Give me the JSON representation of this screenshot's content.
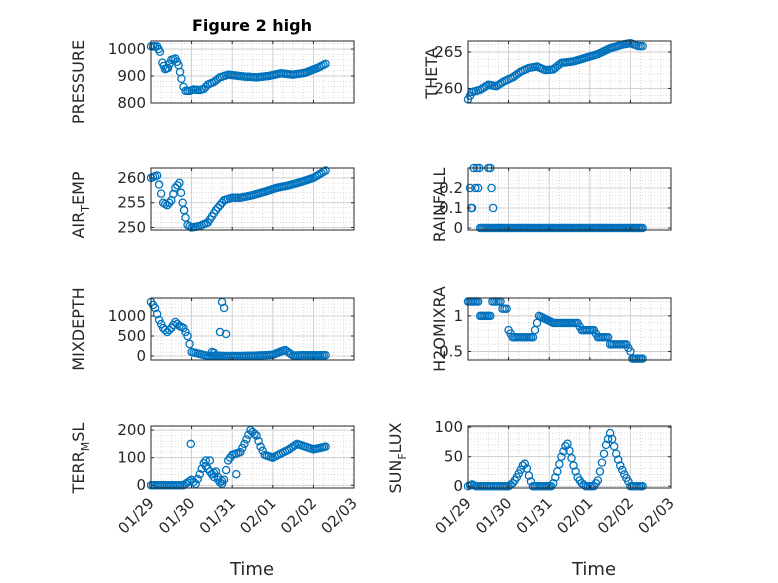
{
  "chart_data": {
    "type": "scatter",
    "title": "Figure 2 high",
    "marker": "circle-open",
    "marker_color": "#0072bd",
    "grid": "major and minor dotted",
    "x_axis": {
      "label": "Time",
      "range": [
        0,
        5
      ],
      "ticks": [
        0,
        1,
        2,
        3,
        4,
        5
      ],
      "tick_labels": [
        "01/29",
        "01/30",
        "01/31",
        "02/01",
        "02/02",
        "02/03"
      ],
      "tick_labels_shown_on": "bottom row only"
    },
    "panels": [
      {
        "id": "pressure",
        "ylabel": "PRESSURE",
        "ylim": [
          800,
          1030
        ],
        "yticks": [
          800,
          900,
          1000
        ],
        "ytick_labels": [
          "800",
          "900",
          "1000"
        ],
        "anchors": [
          [
            0.0,
            1010
          ],
          [
            0.15,
            1010
          ],
          [
            0.22,
            990
          ],
          [
            0.28,
            950
          ],
          [
            0.35,
            925
          ],
          [
            0.42,
            930
          ],
          [
            0.5,
            960
          ],
          [
            0.6,
            965
          ],
          [
            0.68,
            940
          ],
          [
            0.75,
            890
          ],
          [
            0.8,
            860
          ],
          [
            0.85,
            845
          ],
          [
            0.95,
            845
          ],
          [
            1.05,
            850
          ],
          [
            1.2,
            848
          ],
          [
            1.3,
            852
          ],
          [
            1.4,
            868
          ],
          [
            1.55,
            878
          ],
          [
            1.7,
            895
          ],
          [
            1.9,
            905
          ],
          [
            2.3,
            898
          ],
          [
            2.6,
            895
          ],
          [
            2.9,
            900
          ],
          [
            3.2,
            910
          ],
          [
            3.5,
            905
          ],
          [
            3.8,
            912
          ],
          [
            4.1,
            930
          ],
          [
            4.3,
            945
          ]
        ]
      },
      {
        "id": "theta",
        "ylabel": "THETA",
        "ylim": [
          258,
          266.5
        ],
        "yticks": [
          260,
          265
        ],
        "ytick_labels": [
          "260",
          "265"
        ],
        "anchors": [
          [
            0.0,
            258.5
          ],
          [
            0.1,
            259.5
          ],
          [
            0.3,
            259.8
          ],
          [
            0.5,
            260.5
          ],
          [
            0.7,
            260.3
          ],
          [
            0.9,
            261
          ],
          [
            1.1,
            261.5
          ],
          [
            1.3,
            262.3
          ],
          [
            1.5,
            262.8
          ],
          [
            1.7,
            263
          ],
          [
            1.9,
            262.5
          ],
          [
            2.1,
            262.6
          ],
          [
            2.3,
            263.5
          ],
          [
            2.6,
            263.7
          ],
          [
            2.9,
            264.2
          ],
          [
            3.2,
            264.7
          ],
          [
            3.5,
            265.5
          ],
          [
            3.8,
            266.0
          ],
          [
            4.0,
            266.2
          ],
          [
            4.2,
            265.8
          ],
          [
            4.3,
            265.8
          ]
        ]
      },
      {
        "id": "air_temp",
        "ylabel": "AIR_TEMP",
        "ylim": [
          249.5,
          262
        ],
        "yticks": [
          250,
          255,
          260
        ],
        "ytick_labels": [
          "250",
          "255",
          "260"
        ],
        "anchors": [
          [
            0.0,
            260
          ],
          [
            0.15,
            260.5
          ],
          [
            0.3,
            255
          ],
          [
            0.4,
            254.5
          ],
          [
            0.5,
            255.5
          ],
          [
            0.6,
            258
          ],
          [
            0.7,
            259
          ],
          [
            0.78,
            255
          ],
          [
            0.85,
            252
          ],
          [
            0.9,
            250.5
          ],
          [
            1.0,
            250
          ],
          [
            1.2,
            250.3
          ],
          [
            1.4,
            251
          ],
          [
            1.6,
            253.5
          ],
          [
            1.8,
            255.5
          ],
          [
            2.0,
            256
          ],
          [
            2.2,
            256
          ],
          [
            2.5,
            256.5
          ],
          [
            2.8,
            257.2
          ],
          [
            3.1,
            258
          ],
          [
            3.4,
            258.5
          ],
          [
            3.7,
            259.2
          ],
          [
            4.0,
            260
          ],
          [
            4.2,
            261
          ],
          [
            4.3,
            261.5
          ]
        ]
      },
      {
        "id": "rainfall",
        "ylabel": "RAINFALL",
        "ylim": [
          -0.01,
          0.3
        ],
        "yticks": [
          0,
          0.1,
          0.2
        ],
        "ytick_labels": [
          "0",
          "0.1",
          "0.2"
        ],
        "sparse_points": [
          [
            0.05,
            0.2
          ],
          [
            0.08,
            0.1
          ],
          [
            0.1,
            0.1
          ],
          [
            0.14,
            0.3
          ],
          [
            0.18,
            0.2
          ],
          [
            0.22,
            0.3
          ],
          [
            0.25,
            0.2
          ],
          [
            0.28,
            0.3
          ],
          [
            0.5,
            0.3
          ],
          [
            0.55,
            0.3
          ],
          [
            0.58,
            0.2
          ],
          [
            0.62,
            0.1
          ]
        ],
        "baseline": {
          "value": 0,
          "x_range": [
            0.3,
            4.3
          ]
        }
      },
      {
        "id": "mixdepth",
        "ylabel": "MIXDEPTH",
        "ylim": [
          -100,
          1450
        ],
        "yticks": [
          0,
          500,
          1000
        ],
        "ytick_labels": [
          "0",
          "500",
          "1000"
        ],
        "anchors": [
          [
            0.0,
            1350
          ],
          [
            0.1,
            1200
          ],
          [
            0.2,
            900
          ],
          [
            0.3,
            700
          ],
          [
            0.4,
            600
          ],
          [
            0.5,
            700
          ],
          [
            0.6,
            850
          ],
          [
            0.7,
            750
          ],
          [
            0.8,
            700
          ],
          [
            0.9,
            500
          ],
          [
            1.0,
            100
          ],
          [
            1.2,
            50
          ],
          [
            1.4,
            0
          ],
          [
            1.6,
            10
          ],
          [
            1.8,
            0
          ],
          [
            2.2,
            0
          ],
          [
            2.6,
            10
          ],
          [
            3.0,
            30
          ],
          [
            3.3,
            150
          ],
          [
            3.5,
            10
          ],
          [
            3.8,
            20
          ],
          [
            4.3,
            20
          ]
        ],
        "outliers": [
          [
            1.75,
            1350
          ],
          [
            1.8,
            1200
          ],
          [
            1.7,
            600
          ],
          [
            1.85,
            550
          ],
          [
            1.5,
            100
          ],
          [
            1.55,
            80
          ]
        ]
      },
      {
        "id": "h2omixra",
        "ylabel": "H2OMIXRA",
        "ylim": [
          0.38,
          1.25
        ],
        "yticks": [
          0.5,
          1
        ],
        "ytick_labels": [
          "0.5",
          "1"
        ],
        "anchors": [
          [
            0.0,
            1.2
          ],
          [
            0.25,
            1.2
          ],
          [
            0.3,
            1.0
          ],
          [
            0.55,
            1.0
          ],
          [
            0.6,
            1.2
          ],
          [
            0.8,
            1.2
          ],
          [
            0.85,
            1.1
          ],
          [
            0.95,
            1.1
          ],
          [
            1.0,
            0.8
          ],
          [
            1.1,
            0.7
          ],
          [
            1.6,
            0.7
          ],
          [
            1.7,
            0.9
          ],
          [
            1.75,
            1.0
          ],
          [
            2.1,
            0.9
          ],
          [
            2.7,
            0.9
          ],
          [
            2.8,
            0.8
          ],
          [
            3.1,
            0.8
          ],
          [
            3.2,
            0.7
          ],
          [
            3.45,
            0.7
          ],
          [
            3.5,
            0.6
          ],
          [
            3.9,
            0.6
          ],
          [
            4.0,
            0.5
          ],
          [
            4.05,
            0.4
          ],
          [
            4.3,
            0.4
          ]
        ]
      },
      {
        "id": "terr_msl",
        "ylabel": "TERR_MSL",
        "ylim": [
          -10,
          215
        ],
        "yticks": [
          0,
          100,
          200
        ],
        "ytick_labels": [
          "0",
          "100",
          "200"
        ],
        "anchors": [
          [
            0.0,
            0
          ],
          [
            0.8,
            0
          ],
          [
            0.9,
            10
          ],
          [
            1.0,
            20
          ],
          [
            1.1,
            5
          ],
          [
            1.2,
            40
          ],
          [
            1.3,
            80
          ],
          [
            1.4,
            60
          ],
          [
            1.5,
            40
          ],
          [
            1.6,
            50
          ],
          [
            1.7,
            10
          ],
          [
            1.8,
            20
          ],
          [
            1.9,
            90
          ],
          [
            2.0,
            110
          ],
          [
            2.2,
            120
          ],
          [
            2.3,
            150
          ],
          [
            2.45,
            200
          ],
          [
            2.6,
            180
          ],
          [
            2.7,
            140
          ],
          [
            2.8,
            110
          ],
          [
            3.0,
            100
          ],
          [
            3.2,
            115
          ],
          [
            3.4,
            130
          ],
          [
            3.6,
            150
          ],
          [
            3.8,
            140
          ],
          [
            4.0,
            130
          ],
          [
            4.3,
            140
          ]
        ],
        "outliers": [
          [
            0.98,
            150
          ],
          [
            1.35,
            90
          ],
          [
            1.45,
            90
          ],
          [
            1.55,
            30
          ],
          [
            1.65,
            20
          ],
          [
            1.75,
            5
          ],
          [
            2.1,
            40
          ]
        ]
      },
      {
        "id": "sun_flux",
        "ylabel": "SUN_FLUX",
        "ylim": [
          -3,
          102
        ],
        "yticks": [
          0,
          50,
          100
        ],
        "ytick_labels": [
          "0",
          "50",
          "100"
        ],
        "segments": [
          [
            [
              0.0,
              0
            ],
            [
              0.1,
              3
            ],
            [
              0.2,
              0
            ],
            [
              0.3,
              0
            ],
            [
              1.0,
              0
            ],
            [
              1.1,
              5
            ],
            [
              1.2,
              15
            ],
            [
              1.3,
              28
            ],
            [
              1.35,
              35
            ],
            [
              1.4,
              38
            ],
            [
              1.45,
              30
            ],
            [
              1.5,
              18
            ],
            [
              1.55,
              8
            ],
            [
              1.6,
              0
            ],
            [
              2.05,
              0
            ],
            [
              2.1,
              5
            ],
            [
              2.2,
              25
            ],
            [
              2.3,
              50
            ],
            [
              2.4,
              68
            ],
            [
              2.45,
              72
            ],
            [
              2.5,
              60
            ],
            [
              2.6,
              35
            ],
            [
              2.7,
              15
            ],
            [
              2.8,
              5
            ],
            [
              2.9,
              0
            ],
            [
              3.1,
              0
            ],
            [
              3.2,
              10
            ],
            [
              3.3,
              40
            ],
            [
              3.4,
              70
            ],
            [
              3.5,
              90
            ],
            [
              3.55,
              80
            ],
            [
              3.65,
              55
            ],
            [
              3.75,
              35
            ],
            [
              3.85,
              20
            ],
            [
              3.95,
              8
            ],
            [
              4.0,
              0
            ],
            [
              4.3,
              0
            ]
          ]
        ]
      }
    ]
  }
}
